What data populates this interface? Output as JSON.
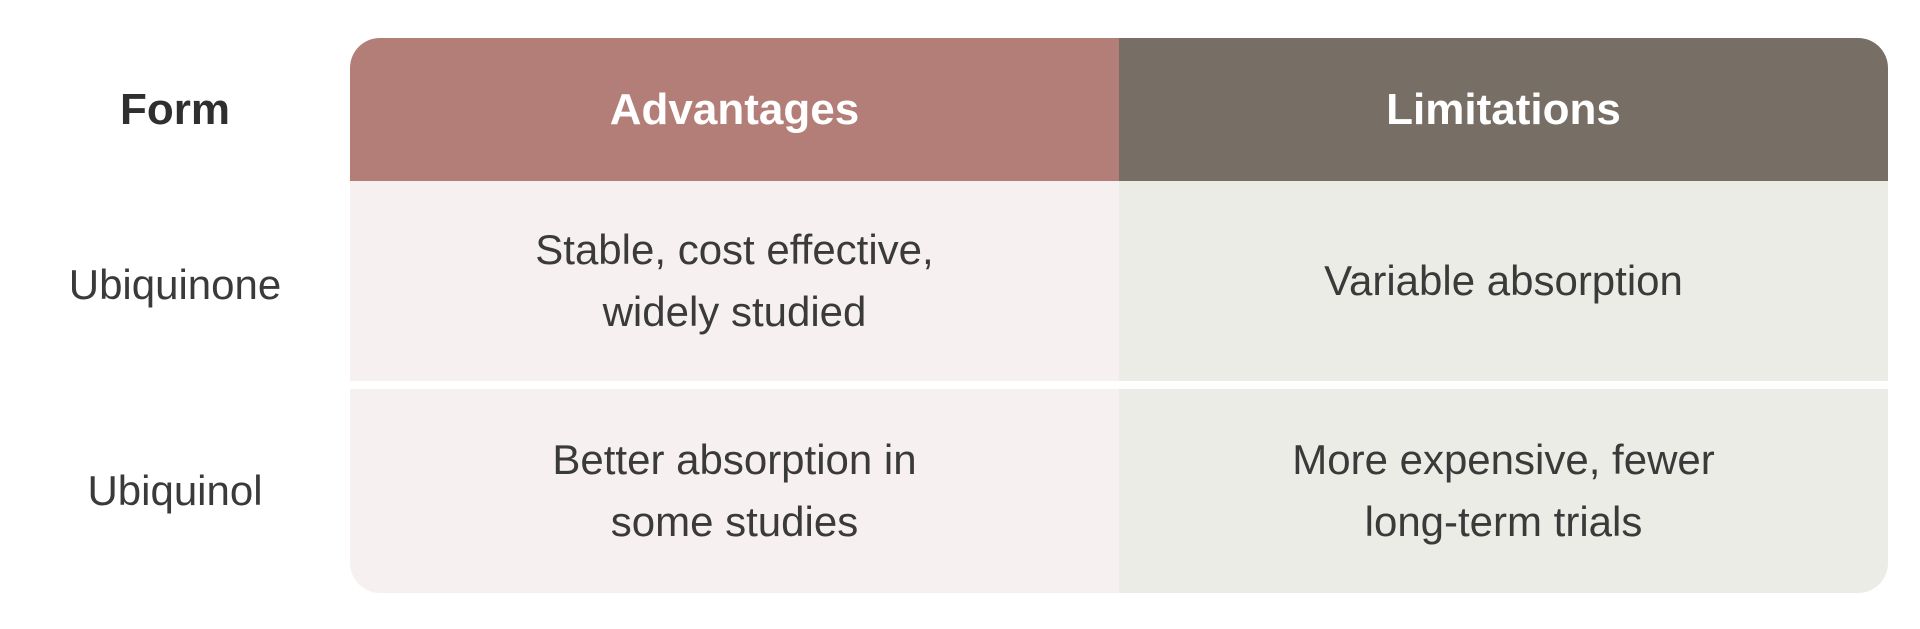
{
  "chart_data": {
    "type": "table",
    "columns": [
      "Form",
      "Advantages",
      "Limitations"
    ],
    "rows": [
      [
        "Ubiquinone",
        "Stable, cost effective, widely studied",
        "Variable absorption"
      ],
      [
        "Ubiquinol",
        "Better absorption in some studies",
        "More expensive, fewer long-term trials"
      ]
    ],
    "legend": "none",
    "grid": "off"
  },
  "table": {
    "form_header": "Form",
    "advantages_header": "Advantages",
    "limitations_header": "Limitations",
    "rows": [
      {
        "form": "Ubiquinone",
        "advantages": "Stable, cost effective,\nwidely studied",
        "limitations": "Variable absorption"
      },
      {
        "form": "Ubiquinol",
        "advantages": "Better absorption in\nsome studies",
        "limitations": "More expensive, fewer\nlong-term trials"
      }
    ],
    "colors": {
      "advantages_header_bg": "#b37e77",
      "limitations_header_bg": "#776e66",
      "advantages_body_bg": "#f6f1f0",
      "limitations_body_bg": "#ebece6",
      "header_text": "#ffffff",
      "body_text": "#3a3a3a"
    }
  }
}
